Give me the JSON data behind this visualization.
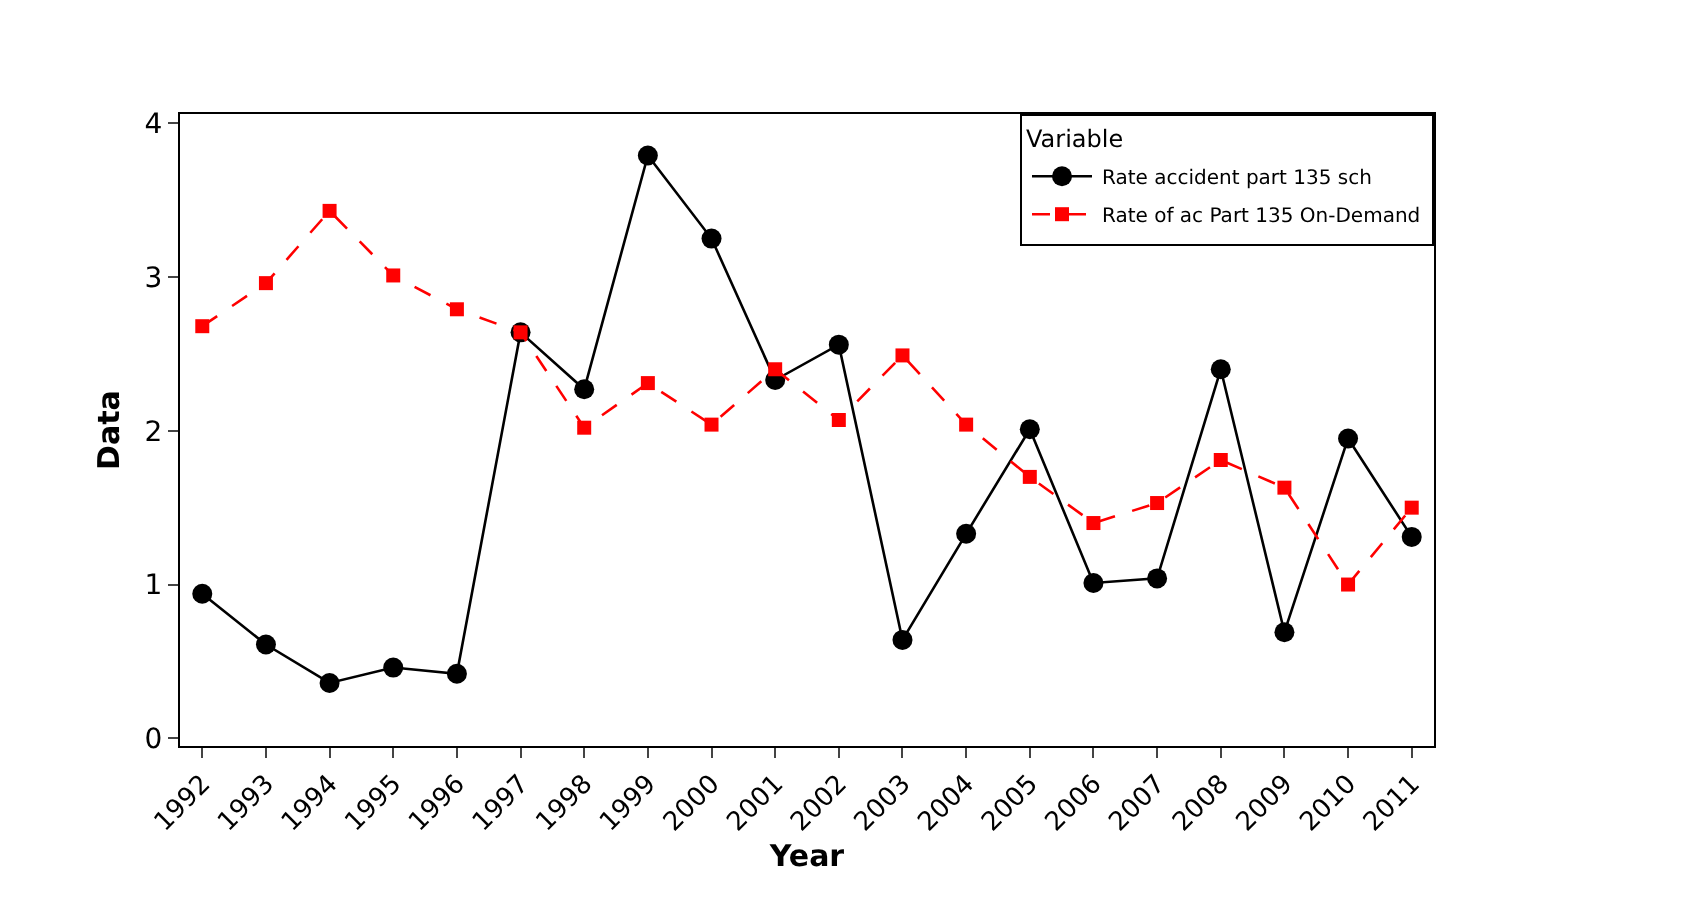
{
  "chart_data": {
    "type": "line",
    "xlabel": "Year",
    "ylabel": "Data",
    "legend_title": "Variable",
    "legend": "top right",
    "categories": [
      "1992",
      "1993",
      "1994",
      "1995",
      "1996",
      "1997",
      "1998",
      "1999",
      "2000",
      "2001",
      "2002",
      "2003",
      "2004",
      "2005",
      "2006",
      "2007",
      "2008",
      "2009",
      "2010",
      "2011"
    ],
    "ylim": [
      -0.05,
      4.06
    ],
    "yticks": [
      0,
      1,
      2,
      3,
      4
    ],
    "series": [
      {
        "name": "Rate accident part 135 sch",
        "color": "#000000",
        "marker": "circle",
        "line_style": "solid",
        "values": [
          0.94,
          0.61,
          0.36,
          0.46,
          0.42,
          2.64,
          2.27,
          3.79,
          3.25,
          2.33,
          2.56,
          0.64,
          1.33,
          2.01,
          1.01,
          1.04,
          2.4,
          0.69,
          1.95,
          1.31
        ]
      },
      {
        "name": "Rate of ac Part 135 On-Demand",
        "color": "#ff0000",
        "marker": "square",
        "line_style": "dashed",
        "values": [
          2.68,
          2.96,
          3.43,
          3.01,
          2.79,
          2.64,
          2.02,
          2.31,
          2.04,
          2.4,
          2.07,
          2.49,
          2.04,
          1.7,
          1.4,
          1.53,
          1.81,
          1.63,
          1.0,
          1.5
        ]
      }
    ]
  }
}
